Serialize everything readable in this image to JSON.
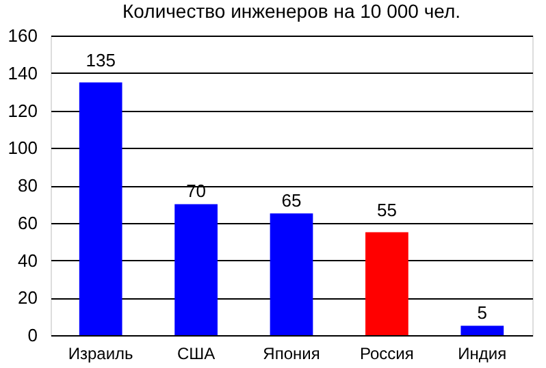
{
  "chart_data": {
    "type": "bar",
    "title": "Количество инженеров на 10 000 чел.",
    "categories": [
      "Израиль",
      "США",
      "Япония",
      "Россия",
      "Индия"
    ],
    "values": [
      135,
      70,
      65,
      55,
      5
    ],
    "colors": [
      "#0000ff",
      "#0000ff",
      "#0000ff",
      "#ff0000",
      "#0000ff"
    ],
    "ylim": [
      0,
      160
    ],
    "yticks": [
      0,
      20,
      40,
      60,
      80,
      100,
      120,
      140,
      160
    ],
    "grid": "y",
    "data_labels": true
  }
}
